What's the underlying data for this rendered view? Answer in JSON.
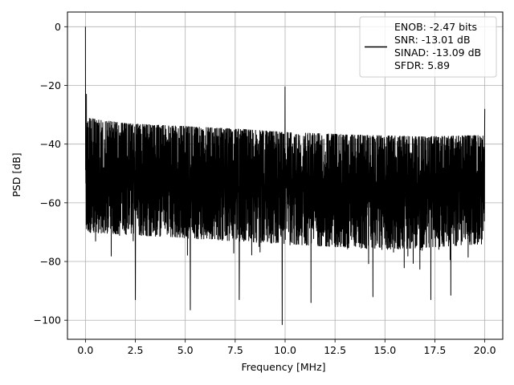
{
  "chart_data": {
    "type": "line",
    "title": "",
    "xlabel": "Frequency [MHz]",
    "ylabel": "PSD [dB]",
    "xlim": [
      -0.9,
      20.9
    ],
    "ylim": [
      -106.5,
      5
    ],
    "xticks": [
      0.0,
      2.5,
      5.0,
      7.5,
      10.0,
      12.5,
      15.0,
      17.5,
      20.0
    ],
    "xtick_labels": [
      "0.0",
      "2.5",
      "5.0",
      "7.5",
      "10.0",
      "12.5",
      "15.0",
      "17.5",
      "20.0"
    ],
    "yticks": [
      0,
      -20,
      -40,
      -60,
      -80,
      -100
    ],
    "ytick_labels": [
      "0",
      "−20",
      "−40",
      "−60",
      "−80",
      "−100"
    ],
    "grid": true,
    "legend_position": "top-right",
    "series": [
      {
        "color": "#000000",
        "description": "dense noise-like PSD trace",
        "x_range": [
          0.0,
          20.0
        ],
        "noise_upper_envelope": [
          [
            0.0,
            -31
          ],
          [
            2.0,
            -33
          ],
          [
            5.0,
            -34
          ],
          [
            8.0,
            -35
          ],
          [
            10.0,
            -36
          ],
          [
            14.0,
            -37
          ],
          [
            17.0,
            -37.5
          ],
          [
            20.0,
            -37
          ]
        ],
        "noise_lower_envelope": [
          [
            0.0,
            -70
          ],
          [
            5.0,
            -72
          ],
          [
            10.0,
            -74
          ],
          [
            15.0,
            -76
          ],
          [
            20.0,
            -74
          ]
        ],
        "spikes": [
          {
            "x": 0.0,
            "y": 0.0
          },
          {
            "x": 0.05,
            "y": -23
          },
          {
            "x": 10.0,
            "y": -20.5
          },
          {
            "x": 20.0,
            "y": -28
          }
        ],
        "deep_dips": [
          {
            "x": 2.5,
            "y": -93
          },
          {
            "x": 5.25,
            "y": -96.5
          },
          {
            "x": 7.7,
            "y": -93
          },
          {
            "x": 9.85,
            "y": -101.5
          },
          {
            "x": 11.3,
            "y": -94
          },
          {
            "x": 14.4,
            "y": -92
          },
          {
            "x": 17.3,
            "y": -93
          },
          {
            "x": 18.3,
            "y": -91.5
          }
        ]
      }
    ],
    "legend": {
      "lines": [
        "ENOB: -2.47 bits",
        "SNR: -13.01 dB",
        "SINAD: -13.09 dB",
        "SFDR: 5.89"
      ]
    }
  }
}
